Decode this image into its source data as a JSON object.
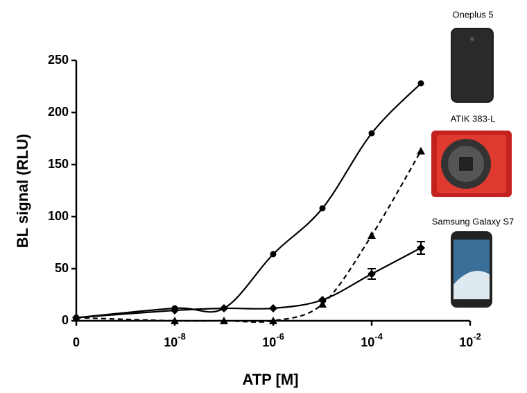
{
  "chart_data": {
    "type": "line",
    "xlabel": "ATP [M]",
    "ylabel": "BL signal (RLU)",
    "xscale": "log",
    "xlim": [
      1e-10,
      0.01
    ],
    "xticks": [
      0,
      {
        "value": 1e-08,
        "label": "10",
        "exponent": "-8"
      },
      {
        "value": 1e-06,
        "label": "10",
        "exponent": "-6"
      },
      {
        "value": 0.0001,
        "label": "10",
        "exponent": "-4"
      },
      {
        "value": 0.01,
        "label": "10",
        "exponent": "-2"
      }
    ],
    "ylim": [
      0,
      250
    ],
    "yticks": [
      0,
      50,
      100,
      150,
      200,
      250
    ],
    "x": [
      0,
      1e-08,
      1e-07,
      1e-06,
      1e-05,
      0.0001,
      0.001
    ],
    "series": [
      {
        "name": "Oneplus 5",
        "color": "#000000",
        "marker": "circle",
        "dash": false,
        "values": [
          3,
          12,
          12,
          64,
          108,
          180,
          228
        ]
      },
      {
        "name": "ATIK 383-L",
        "color": "#000000",
        "marker": "triangle",
        "dash": true,
        "values": [
          3,
          0,
          0,
          0,
          16,
          82,
          163
        ]
      },
      {
        "name": "Samsung Galaxy S7",
        "color": "#000000",
        "marker": "diamond",
        "dash": false,
        "values": [
          3,
          10,
          12,
          12,
          20,
          45,
          70
        ],
        "errors": [
          null,
          null,
          null,
          null,
          null,
          5,
          6
        ]
      }
    ]
  }
}
